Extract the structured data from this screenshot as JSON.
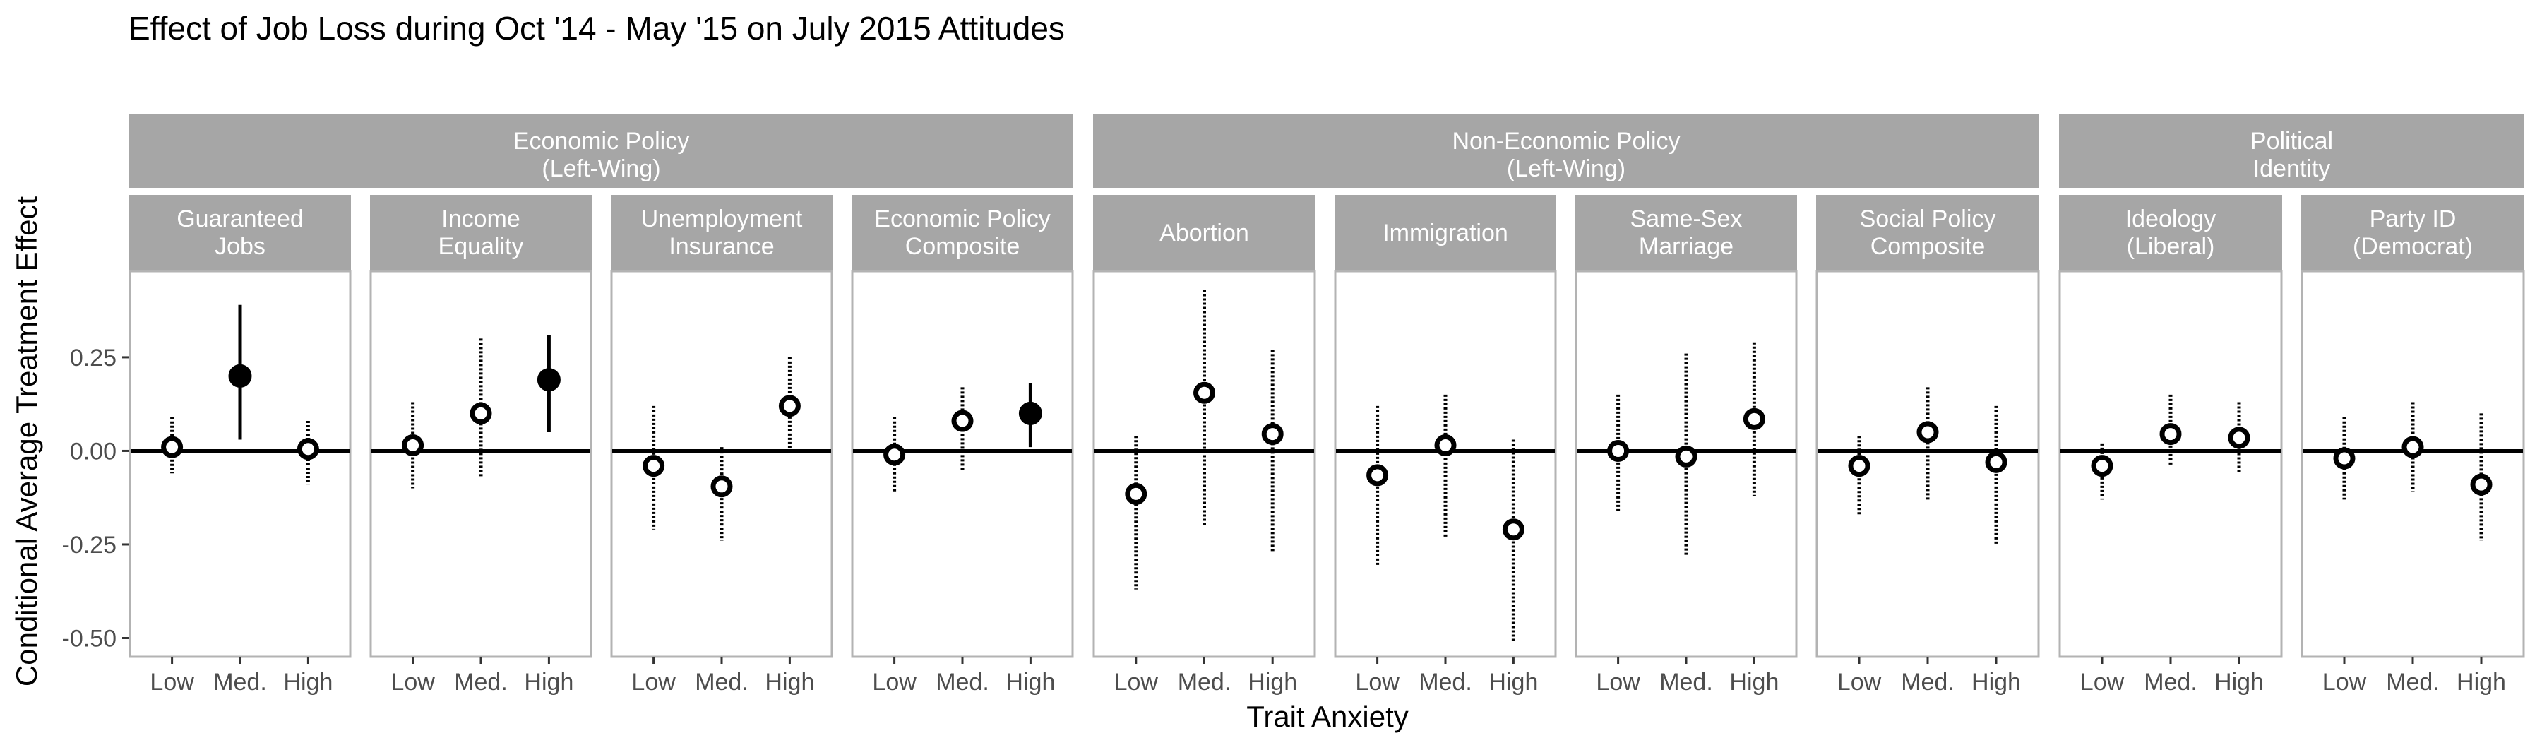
{
  "chart_data": {
    "type": "scatter",
    "title": "Effect of Job Loss during Oct '14 - May '15 on July 2015 Attitudes",
    "xlabel": "Trait Anxiety",
    "ylabel": "Conditional Average Treatment Effect",
    "categories": [
      "Low",
      "Med.",
      "High"
    ],
    "ylim": [
      -0.55,
      0.48
    ],
    "yticks": [
      0.25,
      0.0,
      -0.25,
      -0.5
    ],
    "ytick_labels": [
      "0.25",
      "0.00",
      "-0.25",
      "-0.50"
    ],
    "reference_line": 0,
    "grid": false,
    "legend": "none",
    "encoding": {
      "filled_point_solid_line": "significant",
      "open_point_dotted_line": "not significant"
    },
    "groups": [
      {
        "title_line1": "Economic Policy",
        "title_line2": "(Left-Wing)",
        "panels": [
          {
            "line1": "Guaranteed",
            "line2": "Jobs",
            "points": [
              {
                "x": "Low",
                "y": 0.01,
                "lo": -0.06,
                "hi": 0.09,
                "sig": false
              },
              {
                "x": "Med.",
                "y": 0.2,
                "lo": 0.03,
                "hi": 0.39,
                "sig": true
              },
              {
                "x": "High",
                "y": 0.005,
                "lo": -0.09,
                "hi": 0.08,
                "sig": false
              }
            ]
          },
          {
            "line1": "Income",
            "line2": "Equality",
            "points": [
              {
                "x": "Low",
                "y": 0.015,
                "lo": -0.1,
                "hi": 0.13,
                "sig": false
              },
              {
                "x": "Med.",
                "y": 0.1,
                "lo": -0.07,
                "hi": 0.3,
                "sig": false
              },
              {
                "x": "High",
                "y": 0.19,
                "lo": 0.05,
                "hi": 0.31,
                "sig": true
              }
            ]
          },
          {
            "line1": "Unemployment",
            "line2": "Insurance",
            "points": [
              {
                "x": "Low",
                "y": -0.04,
                "lo": -0.21,
                "hi": 0.12,
                "sig": false
              },
              {
                "x": "Med.",
                "y": -0.095,
                "lo": -0.24,
                "hi": 0.01,
                "sig": false
              },
              {
                "x": "High",
                "y": 0.12,
                "lo": 0.0,
                "hi": 0.25,
                "sig": false
              }
            ]
          },
          {
            "line1": "Economic Policy",
            "line2": "Composite",
            "points": [
              {
                "x": "Low",
                "y": -0.01,
                "lo": -0.11,
                "hi": 0.09,
                "sig": false
              },
              {
                "x": "Med.",
                "y": 0.08,
                "lo": -0.05,
                "hi": 0.17,
                "sig": false
              },
              {
                "x": "High",
                "y": 0.1,
                "lo": 0.01,
                "hi": 0.18,
                "sig": true
              }
            ]
          }
        ]
      },
      {
        "title_line1": "Non-Economic Policy",
        "title_line2": "(Left-Wing)",
        "panels": [
          {
            "line1": "Abortion",
            "line2": "",
            "points": [
              {
                "x": "Low",
                "y": -0.115,
                "lo": -0.37,
                "hi": 0.04,
                "sig": false
              },
              {
                "x": "Med.",
                "y": 0.155,
                "lo": -0.2,
                "hi": 0.43,
                "sig": false
              },
              {
                "x": "High",
                "y": 0.045,
                "lo": -0.27,
                "hi": 0.27,
                "sig": false
              }
            ]
          },
          {
            "line1": "Immigration",
            "line2": "",
            "points": [
              {
                "x": "Low",
                "y": -0.065,
                "lo": -0.31,
                "hi": 0.12,
                "sig": false
              },
              {
                "x": "Med.",
                "y": 0.015,
                "lo": -0.23,
                "hi": 0.15,
                "sig": false
              },
              {
                "x": "High",
                "y": -0.21,
                "lo": -0.51,
                "hi": 0.03,
                "sig": false
              }
            ]
          },
          {
            "line1": "Same-Sex",
            "line2": "Marriage",
            "points": [
              {
                "x": "Low",
                "y": 0.0,
                "lo": -0.16,
                "hi": 0.15,
                "sig": false
              },
              {
                "x": "Med.",
                "y": -0.015,
                "lo": -0.28,
                "hi": 0.26,
                "sig": false
              },
              {
                "x": "High",
                "y": 0.085,
                "lo": -0.12,
                "hi": 0.29,
                "sig": false
              }
            ]
          },
          {
            "line1": "Social Policy",
            "line2": "Composite",
            "points": [
              {
                "x": "Low",
                "y": -0.04,
                "lo": -0.17,
                "hi": 0.04,
                "sig": false
              },
              {
                "x": "Med.",
                "y": 0.05,
                "lo": -0.13,
                "hi": 0.17,
                "sig": false
              },
              {
                "x": "High",
                "y": -0.03,
                "lo": -0.25,
                "hi": 0.12,
                "sig": false
              }
            ]
          }
        ]
      },
      {
        "title_line1": "Political",
        "title_line2": "Identity",
        "panels": [
          {
            "line1": "Ideology",
            "line2": "(Liberal)",
            "points": [
              {
                "x": "Low",
                "y": -0.04,
                "lo": -0.13,
                "hi": 0.02,
                "sig": false
              },
              {
                "x": "Med.",
                "y": 0.045,
                "lo": -0.04,
                "hi": 0.15,
                "sig": false
              },
              {
                "x": "High",
                "y": 0.035,
                "lo": -0.06,
                "hi": 0.13,
                "sig": false
              }
            ]
          },
          {
            "line1": "Party ID",
            "line2": "(Democrat)",
            "points": [
              {
                "x": "Low",
                "y": -0.02,
                "lo": -0.13,
                "hi": 0.09,
                "sig": false
              },
              {
                "x": "Med.",
                "y": 0.01,
                "lo": -0.11,
                "hi": 0.13,
                "sig": false
              },
              {
                "x": "High",
                "y": -0.09,
                "lo": -0.24,
                "hi": 0.1,
                "sig": false
              }
            ]
          }
        ]
      }
    ]
  }
}
